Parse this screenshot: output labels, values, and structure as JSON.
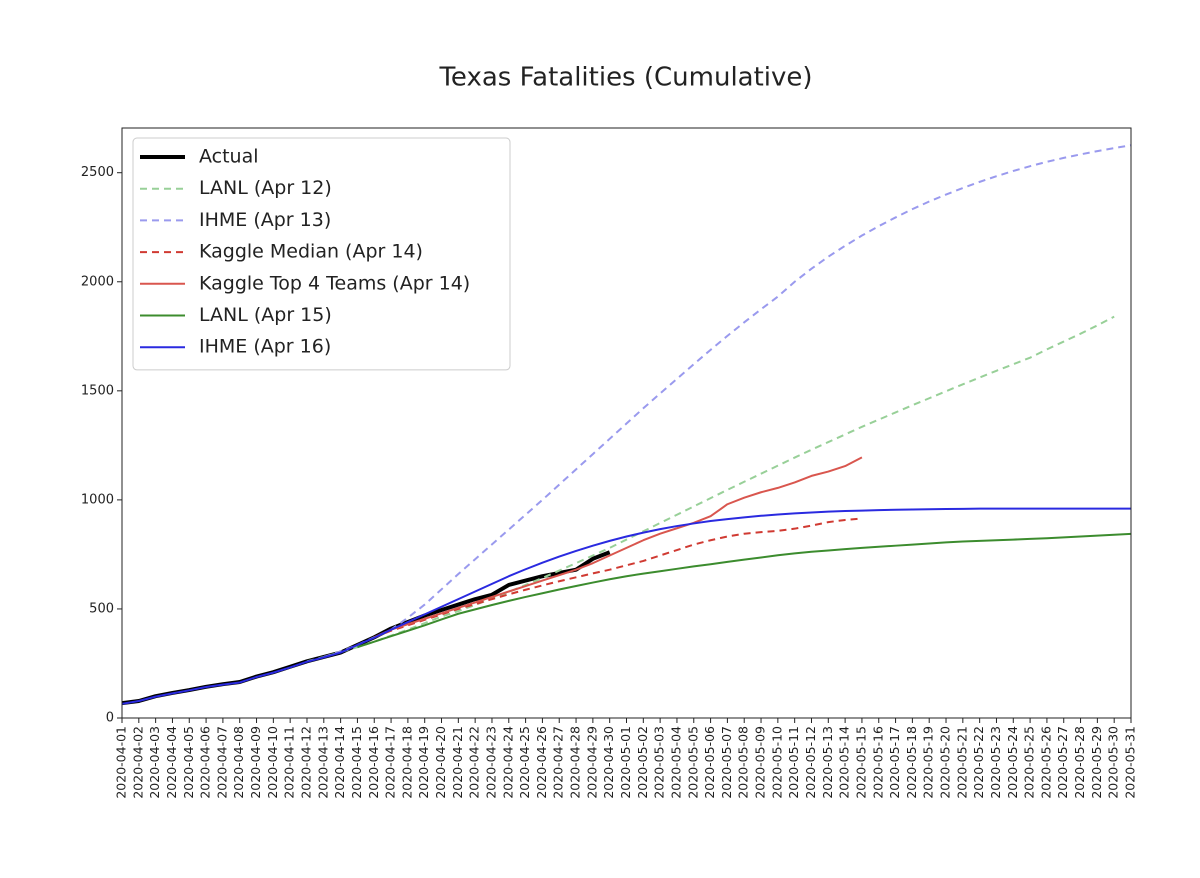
{
  "chart_data": {
    "type": "line",
    "title": "Texas Fatalities (Cumulative)",
    "categories": [
      "2020-04-01",
      "2020-04-02",
      "2020-04-03",
      "2020-04-04",
      "2020-04-05",
      "2020-04-06",
      "2020-04-07",
      "2020-04-08",
      "2020-04-09",
      "2020-04-10",
      "2020-04-11",
      "2020-04-12",
      "2020-04-13",
      "2020-04-14",
      "2020-04-15",
      "2020-04-16",
      "2020-04-17",
      "2020-04-18",
      "2020-04-19",
      "2020-04-20",
      "2020-04-21",
      "2020-04-22",
      "2020-04-23",
      "2020-04-24",
      "2020-04-25",
      "2020-04-26",
      "2020-04-27",
      "2020-04-28",
      "2020-04-29",
      "2020-04-30",
      "2020-05-01",
      "2020-05-02",
      "2020-05-03",
      "2020-05-04",
      "2020-05-05",
      "2020-05-06",
      "2020-05-07",
      "2020-05-08",
      "2020-05-09",
      "2020-05-10",
      "2020-05-11",
      "2020-05-12",
      "2020-05-13",
      "2020-05-14",
      "2020-05-15",
      "2020-05-16",
      "2020-05-17",
      "2020-05-18",
      "2020-05-19",
      "2020-05-20",
      "2020-05-21",
      "2020-05-22",
      "2020-05-23",
      "2020-05-24",
      "2020-05-25",
      "2020-05-26",
      "2020-05-27",
      "2020-05-28",
      "2020-05-29",
      "2020-05-30",
      "2020-05-31"
    ],
    "series": [
      {
        "name": "Actual",
        "color": "#000000",
        "width": 4,
        "dashed": false,
        "values": [
          68,
          78,
          100,
          115,
          128,
          143,
          155,
          165,
          190,
          210,
          235,
          260,
          280,
          300,
          335,
          370,
          410,
          440,
          470,
          495,
          520,
          545,
          565,
          610,
          630,
          650,
          665,
          680,
          730,
          760,
          null,
          null,
          null,
          null,
          null,
          null,
          null,
          null,
          null,
          null,
          null,
          null,
          null,
          null,
          null,
          null,
          null,
          null,
          null,
          null,
          null,
          null,
          null,
          null,
          null,
          null,
          null,
          null,
          null,
          null,
          null
        ]
      },
      {
        "name": "LANL (Apr 12)",
        "color": "#98d098",
        "width": 2,
        "dashed": true,
        "values": [
          null,
          null,
          null,
          null,
          null,
          null,
          null,
          null,
          null,
          null,
          null,
          260,
          280,
          302,
          325,
          350,
          378,
          405,
          435,
          465,
          490,
          518,
          548,
          578,
          610,
          642,
          676,
          710,
          745,
          780,
          818,
          856,
          894,
          932,
          970,
          1008,
          1046,
          1083,
          1120,
          1157,
          1194,
          1230,
          1265,
          1300,
          1335,
          1368,
          1401,
          1434,
          1466,
          1498,
          1530,
          1561,
          1592,
          1622,
          1652,
          1690,
          1726,
          1762,
          1800,
          1840,
          null
        ]
      },
      {
        "name": "IHME (Apr 13)",
        "color": "#9a9aee",
        "width": 2,
        "dashed": true,
        "values": [
          null,
          null,
          null,
          null,
          null,
          null,
          null,
          null,
          null,
          null,
          null,
          null,
          280,
          305,
          335,
          370,
          405,
          460,
          520,
          590,
          660,
          728,
          796,
          864,
          932,
          1000,
          1070,
          1140,
          1210,
          1280,
          1350,
          1420,
          1488,
          1555,
          1622,
          1688,
          1752,
          1814,
          1874,
          1932,
          2000,
          2060,
          2115,
          2165,
          2212,
          2255,
          2295,
          2333,
          2368,
          2400,
          2430,
          2458,
          2484,
          2508,
          2530,
          2550,
          2568,
          2584,
          2599,
          2613,
          2626
        ]
      },
      {
        "name": "Kaggle Median (Apr 14)",
        "color": "#d03a32",
        "width": 2,
        "dashed": true,
        "values": [
          null,
          null,
          null,
          null,
          null,
          null,
          null,
          null,
          null,
          null,
          null,
          null,
          null,
          null,
          null,
          370,
          400,
          425,
          450,
          475,
          500,
          522,
          545,
          567,
          588,
          608,
          627,
          645,
          663,
          680,
          700,
          720,
          745,
          770,
          795,
          815,
          832,
          845,
          852,
          858,
          868,
          882,
          898,
          908,
          915,
          null,
          null,
          null,
          null,
          null,
          null,
          null,
          null,
          null,
          null,
          null,
          null,
          null,
          null,
          null,
          null
        ]
      },
      {
        "name": "Kaggle Top 4 Teams (Apr 14)",
        "color": "#d9564e",
        "width": 2,
        "dashed": false,
        "values": [
          null,
          null,
          null,
          null,
          null,
          null,
          null,
          null,
          null,
          null,
          null,
          null,
          null,
          null,
          null,
          370,
          405,
          430,
          455,
          480,
          505,
          530,
          555,
          580,
          605,
          630,
          655,
          680,
          710,
          745,
          780,
          815,
          845,
          870,
          895,
          925,
          980,
          1010,
          1035,
          1055,
          1080,
          1110,
          1130,
          1155,
          1195,
          null,
          null,
          null,
          null,
          null,
          null,
          null,
          null,
          null,
          null,
          null,
          null,
          null,
          null,
          null,
          null
        ]
      },
      {
        "name": "LANL (Apr 15)",
        "color": "#3c8c2e",
        "width": 2,
        "dashed": false,
        "values": [
          null,
          null,
          null,
          null,
          null,
          null,
          null,
          null,
          null,
          null,
          null,
          null,
          null,
          null,
          325,
          350,
          375,
          400,
          425,
          452,
          478,
          498,
          518,
          537,
          555,
          572,
          589,
          605,
          621,
          636,
          650,
          662,
          673,
          684,
          695,
          705,
          716,
          726,
          736,
          746,
          755,
          762,
          768,
          774,
          780,
          785,
          790,
          795,
          800,
          805,
          809,
          812,
          815,
          818,
          821,
          824,
          828,
          832,
          836,
          840,
          844
        ]
      },
      {
        "name": "IHME (Apr 16)",
        "color": "#2a2ae0",
        "width": 2,
        "dashed": false,
        "values": [
          65,
          78,
          98,
          113,
          127,
          142,
          153,
          163,
          188,
          208,
          232,
          258,
          278,
          300,
          335,
          368,
          405,
          440,
          475,
          510,
          545,
          580,
          615,
          650,
          682,
          712,
          740,
          766,
          790,
          812,
          832,
          850,
          866,
          880,
          892,
          903,
          912,
          920,
          927,
          933,
          938,
          942,
          946,
          949,
          951,
          953,
          955,
          956,
          957,
          958,
          959,
          960,
          960,
          960,
          960,
          960,
          960,
          960,
          960,
          960,
          960
        ]
      }
    ],
    "ylim": [
      0,
      2705
    ],
    "yticks": [
      0,
      500,
      1000,
      1500,
      2000,
      2500
    ],
    "grid": false,
    "legend": "upper left"
  }
}
